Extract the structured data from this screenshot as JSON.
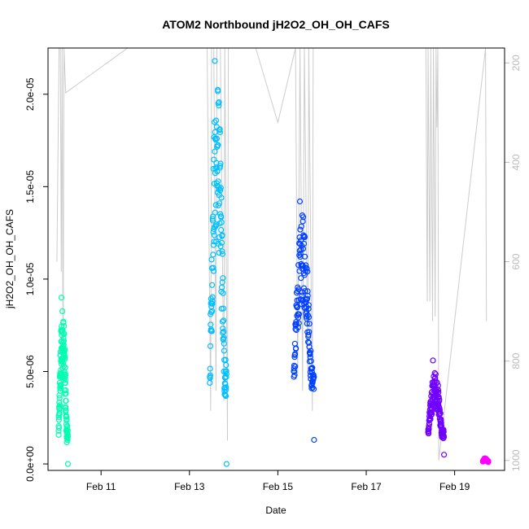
{
  "chart_data": {
    "type": "scatter",
    "title": "ATOM2 Northbound jH2O2_OH_OH_CAFS",
    "xlabel": "Date",
    "ylabel": "jH2O2_OH_OH_CAFS",
    "x_unit": "day of February (fractional)",
    "xlim": [
      9.8,
      20.13
    ],
    "ylim": [
      -3.5e-07,
      2.25e-05
    ],
    "x_ticks": [
      {
        "value": 11,
        "label": "Feb 11"
      },
      {
        "value": 13,
        "label": "Feb 13"
      },
      {
        "value": 15,
        "label": "Feb 15"
      },
      {
        "value": 17,
        "label": "Feb 17"
      },
      {
        "value": 19,
        "label": "Feb 19"
      }
    ],
    "y_ticks": [
      {
        "value": 0,
        "label": "0.0e+00"
      },
      {
        "value": 5e-06,
        "label": "5.0e-06"
      },
      {
        "value": 1e-05,
        "label": "1.0e-05"
      },
      {
        "value": 1.5e-05,
        "label": "1.5e-05"
      },
      {
        "value": 2e-05,
        "label": "2.0e-05"
      }
    ],
    "y2_axis": {
      "side": "right",
      "reversed": true,
      "lim": [
        170,
        1020
      ],
      "color": "#bbbbbb",
      "ticks": [
        {
          "value": 200,
          "label": "200"
        },
        {
          "value": 400,
          "label": "400"
        },
        {
          "value": 600,
          "label": "600"
        },
        {
          "value": 800,
          "label": "800"
        },
        {
          "value": 1000,
          "label": "1000"
        }
      ]
    },
    "grid": false,
    "legend": "none",
    "series": [
      {
        "flight": 1,
        "color": "#00ffb0",
        "x_range": [
          10.04,
          10.25
        ],
        "y_min": 0.0,
        "y_max": 9e-06,
        "y_low": 0.0,
        "y_high": 8.5e-06
      },
      {
        "flight": 2,
        "color": "#00bfff",
        "x_range": [
          13.46,
          13.84
        ],
        "y_min": 0.0,
        "y_max": 2.18e-05,
        "y_low": 8e-07,
        "y_high": 2.1e-05
      },
      {
        "flight": 3,
        "color": "#0040ff",
        "x_range": [
          15.36,
          15.82
        ],
        "y_min": 1.3e-06,
        "y_max": 1.42e-05,
        "y_low": 2.5e-06,
        "y_high": 1.35e-05
      },
      {
        "flight": 4,
        "color": "#7000ff",
        "x_range": [
          18.4,
          18.76
        ],
        "y_min": 5e-07,
        "y_max": 5.6e-06,
        "y_low": 8e-07,
        "y_high": 5e-06
      },
      {
        "flight": 5,
        "color": "#ff00ff",
        "x_range": [
          19.64,
          19.76
        ],
        "y_min": 1e-07,
        "y_max": 3e-07,
        "y_low": 1e-07,
        "y_high": 3e-07
      }
    ],
    "pressure_trace": {
      "color": "#cccccc",
      "points": [
        [
          10.0,
          600
        ],
        [
          10.05,
          170
        ],
        [
          10.08,
          170
        ],
        [
          10.1,
          620
        ],
        [
          10.12,
          170
        ],
        [
          10.14,
          860
        ],
        [
          10.16,
          170
        ],
        [
          10.2,
          260
        ],
        [
          11.6,
          170
        ],
        [
          13.4,
          170
        ],
        [
          13.48,
          900
        ],
        [
          13.5,
          170
        ],
        [
          13.55,
          170
        ],
        [
          13.6,
          860
        ],
        [
          13.62,
          170
        ],
        [
          13.7,
          170
        ],
        [
          13.78,
          880
        ],
        [
          13.8,
          170
        ],
        [
          13.86,
          960
        ],
        [
          13.88,
          170
        ],
        [
          14.5,
          170
        ],
        [
          15.0,
          320
        ],
        [
          15.4,
          170
        ],
        [
          15.45,
          830
        ],
        [
          15.5,
          170
        ],
        [
          15.56,
          860
        ],
        [
          15.6,
          170
        ],
        [
          15.68,
          840
        ],
        [
          15.7,
          170
        ],
        [
          15.78,
          900
        ],
        [
          15.8,
          170
        ],
        [
          18.35,
          170
        ],
        [
          18.38,
          680
        ],
        [
          18.4,
          170
        ],
        [
          18.44,
          680
        ],
        [
          18.46,
          170
        ],
        [
          18.5,
          720
        ],
        [
          18.52,
          170
        ],
        [
          18.56,
          710
        ],
        [
          18.58,
          170
        ],
        [
          18.6,
          330
        ],
        [
          18.62,
          170
        ],
        [
          18.64,
          1000
        ],
        [
          19.7,
          170
        ],
        [
          19.72,
          720
        ]
      ]
    }
  }
}
